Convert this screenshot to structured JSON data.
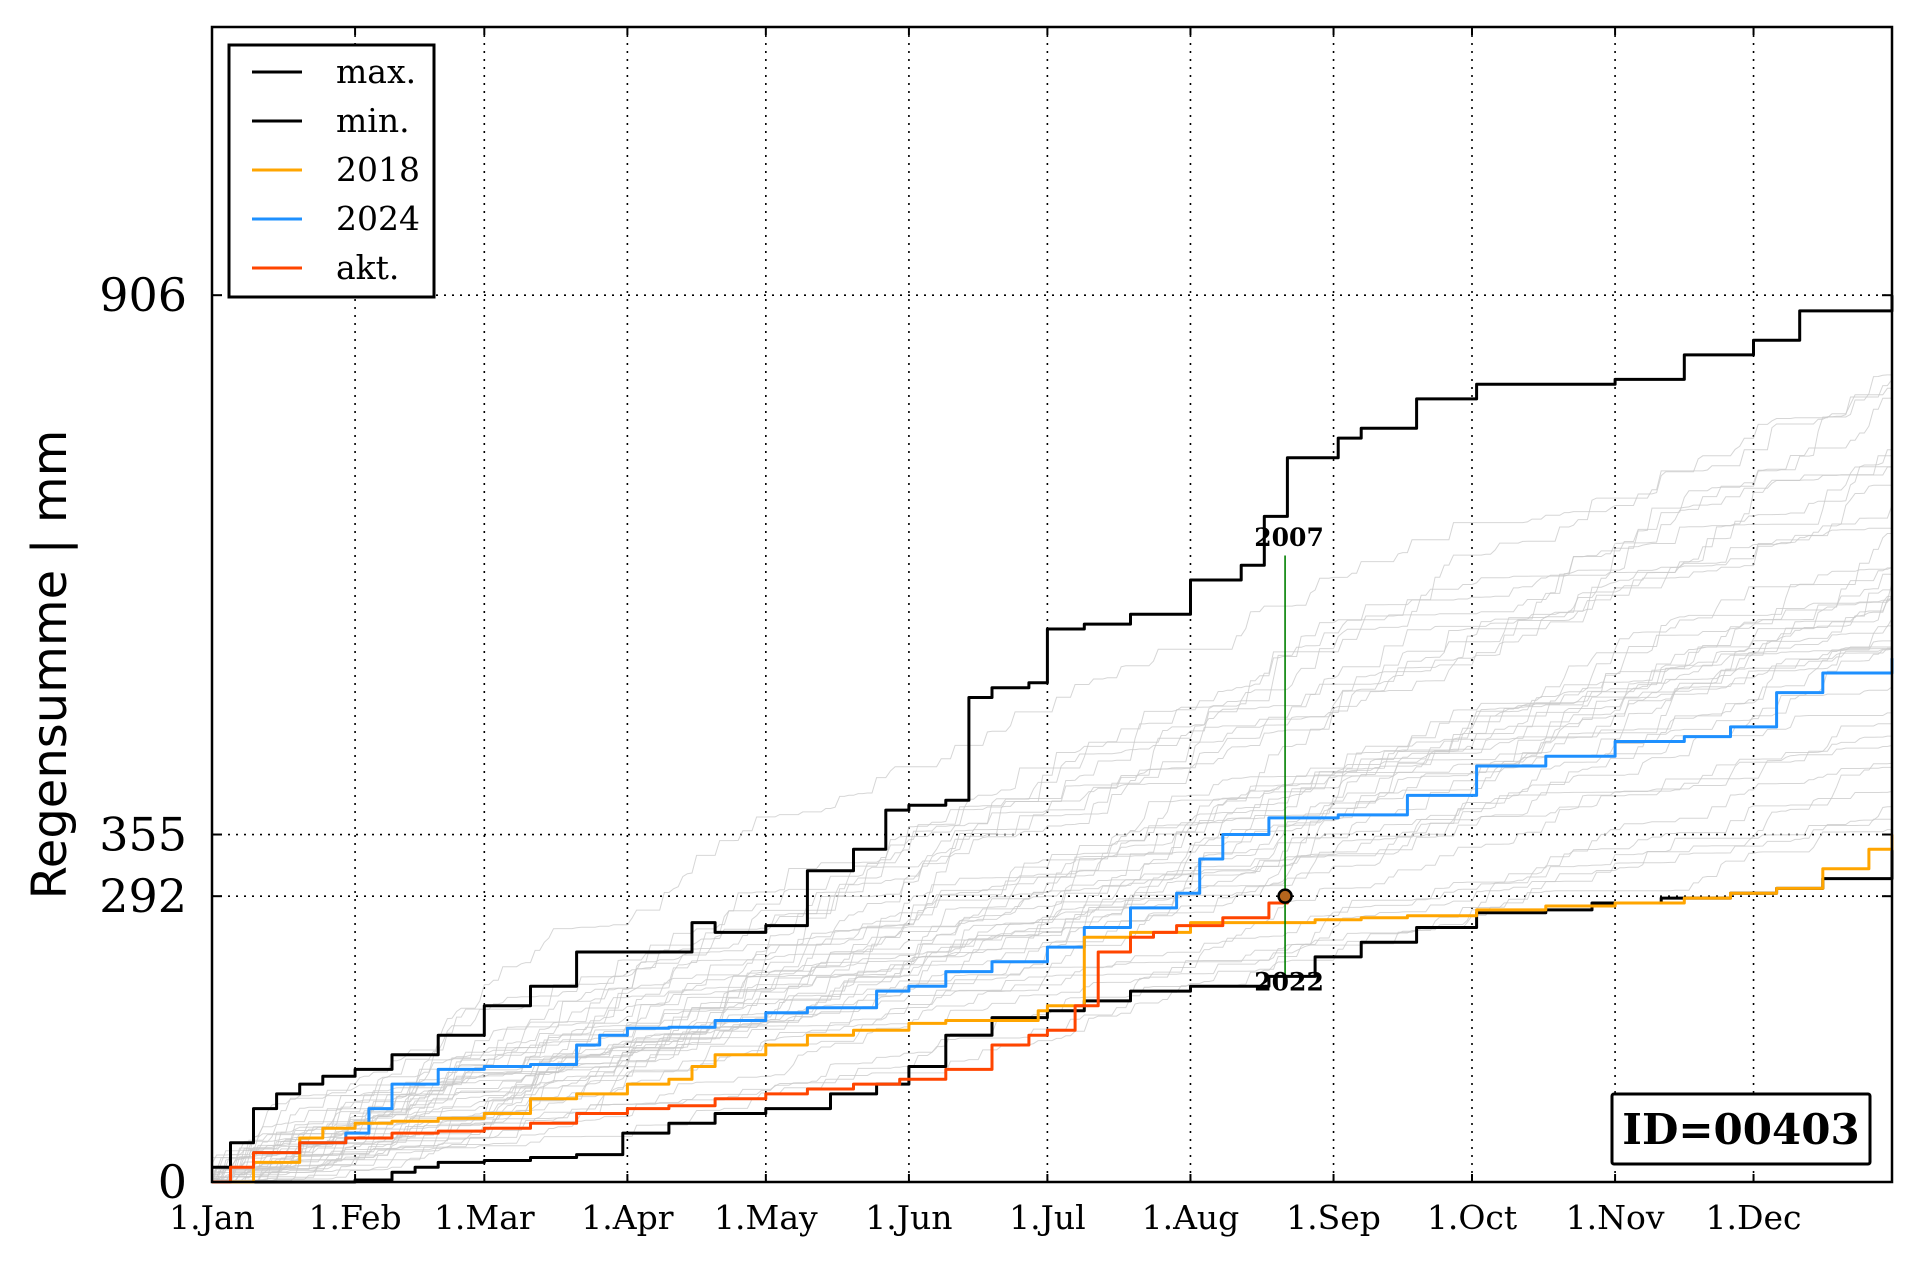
{
  "chart_data": {
    "type": "line",
    "ylabel": "Regensumme | mm",
    "xlabel": "",
    "xlim": [
      1,
      365
    ],
    "ylim": [
      0,
      1180
    ],
    "y_ticks": [
      0,
      292,
      355,
      906
    ],
    "y_tick_labels": [
      "0",
      "292",
      "355",
      "906"
    ],
    "x_ticks": [
      1,
      32,
      60,
      91,
      121,
      152,
      182,
      213,
      244,
      274,
      305,
      335
    ],
    "x_tick_labels": [
      "1.Jan",
      "1.Feb",
      "1.Mar",
      "1.Apr",
      "1.May",
      "1.Jun",
      "1.Jul",
      "1.Aug",
      "1.Sep",
      "1.Oct",
      "1.Nov",
      "1.Dec"
    ],
    "grid": true,
    "legend_position": "top-left",
    "legend": [
      "max.",
      "min.",
      "2018",
      "2024",
      "akt."
    ],
    "series": [
      {
        "name": "max.",
        "color": "#000000",
        "x": [
          1,
          5,
          10,
          15,
          20,
          25,
          32,
          40,
          50,
          60,
          70,
          80,
          91,
          100,
          105,
          110,
          121,
          130,
          140,
          147,
          152,
          160,
          165,
          170,
          178,
          182,
          190,
          200,
          213,
          224,
          229,
          234,
          245,
          250,
          262,
          275,
          290,
          305,
          320,
          335,
          345,
          365
        ],
        "y": [
          15,
          40,
          75,
          90,
          100,
          108,
          115,
          130,
          150,
          180,
          200,
          235,
          235,
          235,
          265,
          255,
          262,
          318,
          340,
          380,
          385,
          390,
          495,
          505,
          510,
          565,
          570,
          580,
          615,
          630,
          680,
          740,
          760,
          770,
          800,
          815,
          815,
          820,
          845,
          860,
          890,
          906
        ]
      },
      {
        "name": "min.",
        "color": "#000000",
        "x": [
          1,
          20,
          32,
          40,
          45,
          50,
          60,
          70,
          80,
          90,
          100,
          110,
          121,
          135,
          145,
          152,
          160,
          170,
          182,
          190,
          200,
          213,
          225,
          230,
          240,
          250,
          262,
          275,
          290,
          300,
          315,
          330,
          340,
          350,
          365
        ],
        "y": [
          0,
          0,
          2,
          10,
          15,
          20,
          22,
          25,
          28,
          50,
          60,
          70,
          75,
          90,
          100,
          118,
          150,
          168,
          175,
          185,
          195,
          200,
          200,
          210,
          230,
          245,
          260,
          275,
          278,
          285,
          290,
          295,
          300,
          310,
          355
        ]
      },
      {
        "name": "2018",
        "color": "#ffa500",
        "x": [
          1,
          10,
          20,
          25,
          32,
          40,
          50,
          60,
          70,
          80,
          91,
          100,
          105,
          110,
          121,
          130,
          140,
          152,
          160,
          170,
          180,
          182,
          190,
          200,
          213,
          225,
          235,
          240,
          250,
          260,
          275,
          290,
          305,
          320,
          330,
          340,
          350,
          360,
          365
        ],
        "y": [
          0,
          20,
          45,
          55,
          60,
          62,
          65,
          70,
          85,
          90,
          100,
          105,
          118,
          130,
          140,
          150,
          155,
          162,
          165,
          165,
          175,
          180,
          250,
          255,
          265,
          265,
          265,
          268,
          270,
          272,
          278,
          282,
          285,
          290,
          295,
          300,
          320,
          340,
          355
        ]
      },
      {
        "name": "2024",
        "color": "#1e90ff",
        "x": [
          1,
          10,
          20,
          30,
          35,
          40,
          50,
          60,
          70,
          80,
          85,
          91,
          100,
          110,
          121,
          130,
          145,
          152,
          160,
          170,
          182,
          190,
          200,
          210,
          215,
          220,
          230,
          245,
          260,
          275,
          290,
          305,
          320,
          330,
          340,
          350,
          365
        ],
        "y": [
          0,
          30,
          40,
          50,
          75,
          100,
          115,
          118,
          120,
          140,
          150,
          157,
          158,
          165,
          173,
          178,
          195,
          200,
          215,
          225,
          240,
          260,
          280,
          295,
          330,
          355,
          372,
          375,
          395,
          425,
          435,
          450,
          455,
          465,
          500,
          520,
          535
        ]
      },
      {
        "name": "akt.",
        "color": "#ff4500",
        "x": [
          1,
          5,
          10,
          20,
          30,
          40,
          50,
          60,
          70,
          80,
          91,
          100,
          110,
          121,
          130,
          140,
          150,
          160,
          170,
          178,
          182,
          188,
          193,
          200,
          205,
          210,
          220,
          230,
          234
        ],
        "y": [
          0,
          15,
          30,
          40,
          45,
          50,
          52,
          55,
          60,
          70,
          75,
          78,
          85,
          90,
          95,
          100,
          105,
          115,
          140,
          150,
          155,
          180,
          235,
          250,
          255,
          262,
          270,
          285,
          292
        ]
      }
    ],
    "annotations": [
      {
        "text": "2007",
        "x": 233.5,
        "y": 659
      },
      {
        "text": "2022",
        "x": 233.5,
        "y": 205
      }
    ],
    "marker_point": {
      "x": 233.5,
      "y": 292
    },
    "vertical_line": {
      "x": 233.5,
      "y_from": 205,
      "y_to": 640,
      "color": "#008000"
    },
    "id_box": "ID=00403",
    "background_series_color": "#c8c8c8"
  }
}
